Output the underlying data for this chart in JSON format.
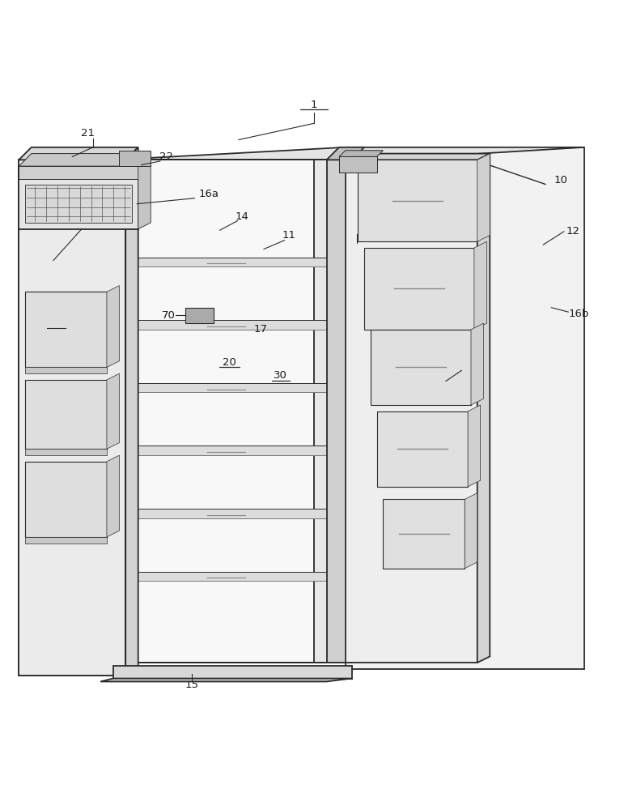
{
  "background_color": "#ffffff",
  "line_color": "#2a2a2a",
  "label_color": "#1a1a1a",
  "lw_main": 1.3,
  "lw_thin": 0.7,
  "label_fontsize": 9.5
}
